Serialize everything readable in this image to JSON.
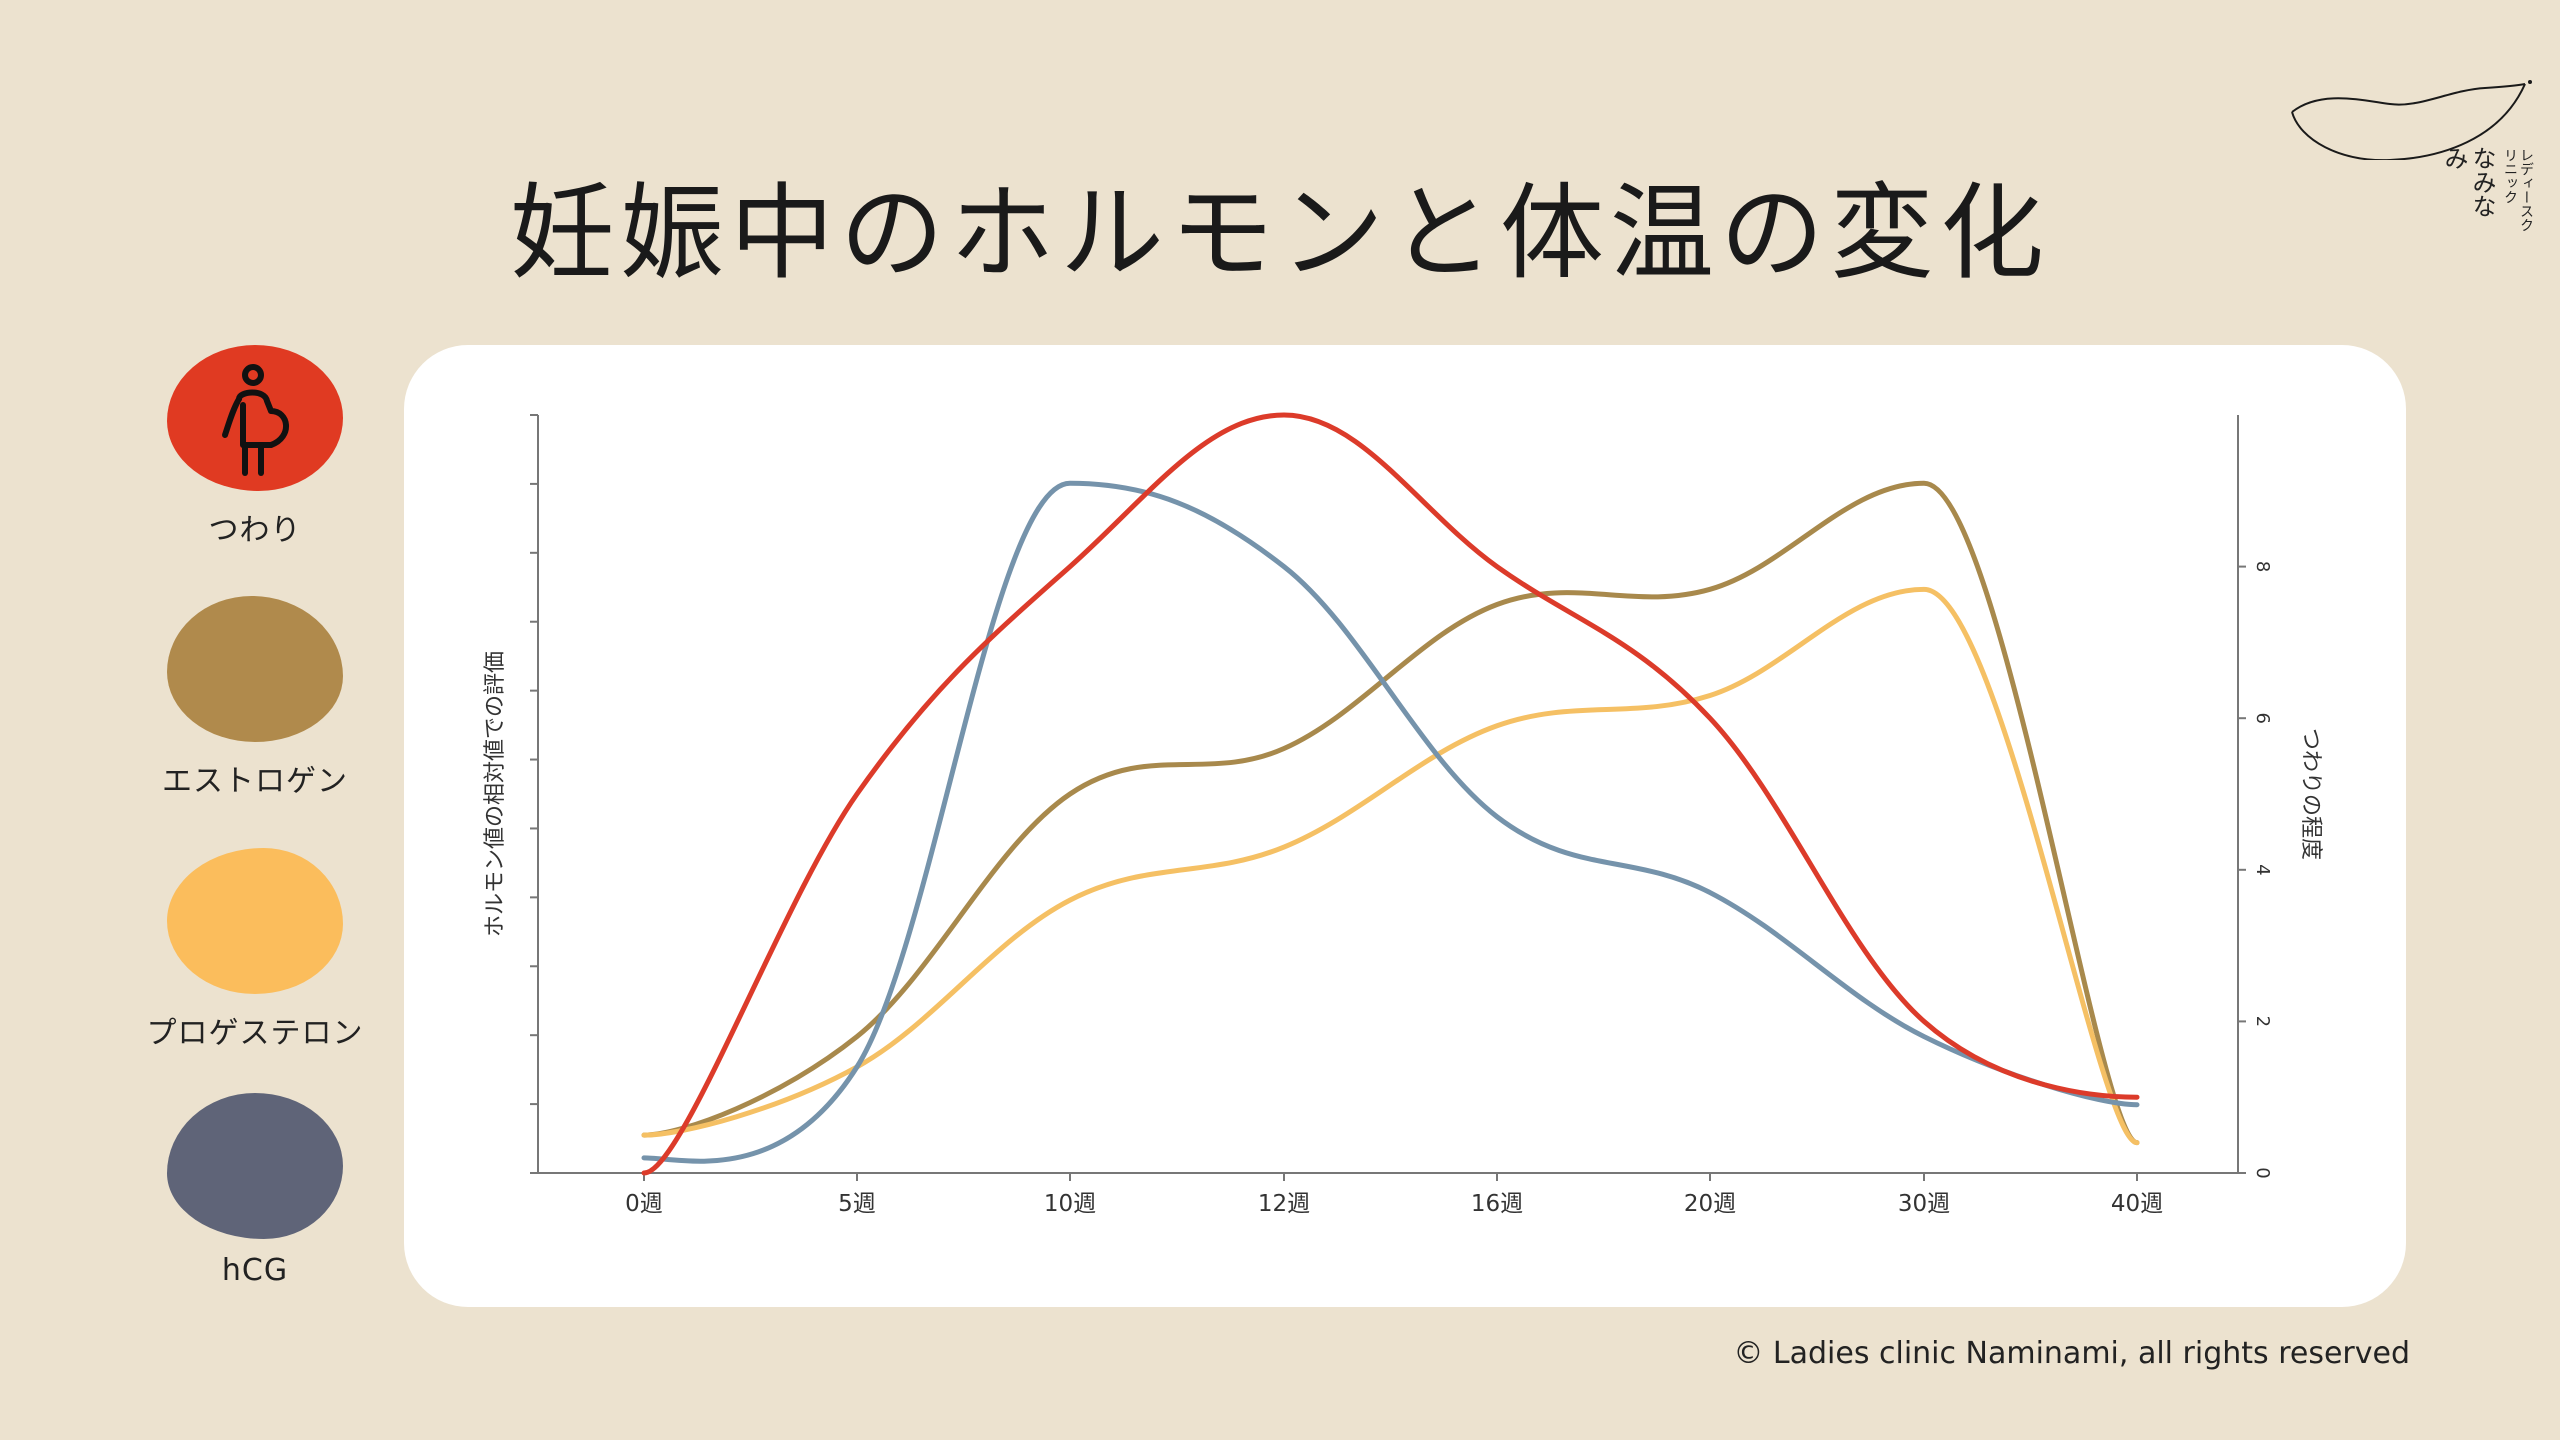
{
  "title": "妊娠中のホルモンと体温の変化",
  "logo": {
    "clinic": "レディースクリニック",
    "name": "なみなみ"
  },
  "legend": [
    {
      "label": "つわり",
      "color": "#e03a22",
      "icon": "pregnant-woman-icon"
    },
    {
      "label": "エストロゲン",
      "color": "#b08a4c"
    },
    {
      "label": "プロゲステロン",
      "color": "#fbbd5c"
    },
    {
      "label": "hCG",
      "color": "#5f6478"
    }
  ],
  "copyright": "© Ladies clinic Naminami, all rights reserved",
  "chart_data": {
    "type": "line",
    "x": [
      "0週",
      "5週",
      "10週",
      "12週",
      "16週",
      "20週",
      "30週",
      "40週"
    ],
    "y_left_label": "ホルモン値の相対値での評価",
    "y_right_label": "つわりの程度",
    "y_right_ticks": [
      "0",
      "2",
      "4",
      "6",
      "8"
    ],
    "y_right_range": [
      0,
      10
    ],
    "series": [
      {
        "name": "つわり",
        "color": "#dc3b2a",
        "values": [
          0.0,
          5.0,
          8.0,
          10.0,
          8.0,
          6.0,
          2.0,
          1.0
        ]
      },
      {
        "name": "hCG",
        "color": "#7593ab",
        "values": [
          0.2,
          1.4,
          9.1,
          8.0,
          4.7,
          3.7,
          1.8,
          0.9
        ]
      },
      {
        "name": "エストロゲン",
        "color": "#a8894c",
        "values": [
          0.5,
          1.8,
          5.0,
          5.6,
          7.5,
          7.7,
          9.1,
          0.4
        ]
      },
      {
        "name": "プロゲステロン",
        "color": "#f5c064",
        "values": [
          0.5,
          1.4,
          3.6,
          4.3,
          5.9,
          6.3,
          7.7,
          0.4
        ]
      }
    ]
  }
}
